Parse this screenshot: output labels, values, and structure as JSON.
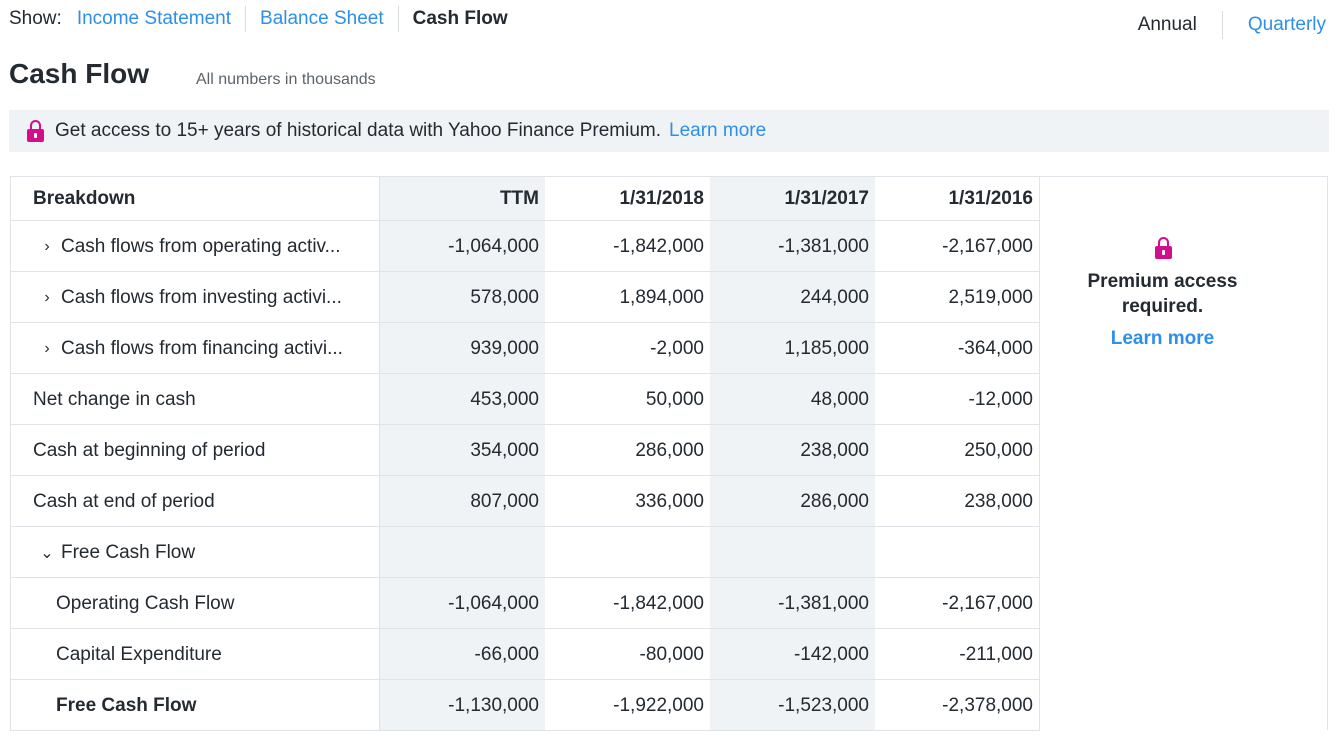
{
  "show": {
    "label": "Show:",
    "options": [
      "Income Statement",
      "Balance Sheet",
      "Cash Flow"
    ],
    "active": "Cash Flow"
  },
  "period": {
    "annual": "Annual",
    "quarterly": "Quarterly",
    "selected": "Annual"
  },
  "title": "Cash Flow",
  "subtitle": "All numbers in thousands",
  "banner": {
    "icon": "lock-icon",
    "text": "Get access to 15+ years of historical data with Yahoo Finance Premium.",
    "link": "Learn more"
  },
  "table": {
    "headers": [
      "Breakdown",
      "TTM",
      "1/31/2018",
      "1/31/2017",
      "1/31/2016"
    ],
    "rows": [
      {
        "label": "Cash flows from operating activ...",
        "expander": "›",
        "values": [
          "-1,064,000",
          "-1,842,000",
          "-1,381,000",
          "-2,167,000"
        ]
      },
      {
        "label": "Cash flows from investing activi...",
        "expander": "›",
        "values": [
          "578,000",
          "1,894,000",
          "244,000",
          "2,519,000"
        ]
      },
      {
        "label": "Cash flows from financing activi...",
        "expander": "›",
        "values": [
          "939,000",
          "-2,000",
          "1,185,000",
          "-364,000"
        ]
      },
      {
        "label": "Net change in cash",
        "values": [
          "453,000",
          "50,000",
          "48,000",
          "-12,000"
        ]
      },
      {
        "label": "Cash at beginning of period",
        "values": [
          "354,000",
          "286,000",
          "238,000",
          "250,000"
        ]
      },
      {
        "label": "Cash at end of period",
        "values": [
          "807,000",
          "336,000",
          "286,000",
          "238,000"
        ]
      },
      {
        "label": "Free Cash Flow",
        "expander": "⌄",
        "values": [
          "",
          "",
          "",
          ""
        ]
      },
      {
        "label": "Operating Cash Flow",
        "values": [
          "-1,064,000",
          "-1,842,000",
          "-1,381,000",
          "-2,167,000"
        ]
      },
      {
        "label": "Capital Expenditure",
        "values": [
          "-66,000",
          "-80,000",
          "-142,000",
          "-211,000"
        ]
      },
      {
        "label": "Free Cash Flow",
        "values": [
          "-1,130,000",
          "-1,922,000",
          "-1,523,000",
          "-2,378,000"
        ]
      }
    ]
  },
  "premium": {
    "icon": "lock-icon",
    "text": "Premium access required.",
    "link": "Learn more"
  },
  "colors": {
    "accent": "#2e8fe8",
    "lock": "#d30e8c",
    "shaded": "#f0f3f5"
  }
}
